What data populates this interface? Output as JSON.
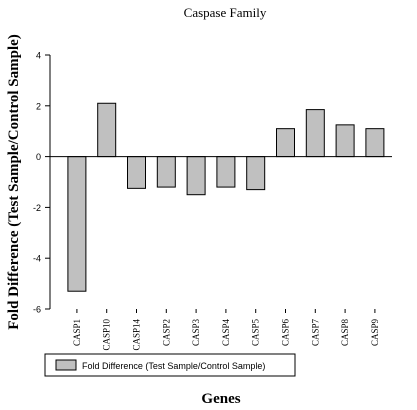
{
  "chart_data": {
    "type": "bar",
    "title": "Caspase Family",
    "xlabel": "Genes",
    "ylabel": "Fold Difference (Test Sample/Control Sample)",
    "categories": [
      "CASP1",
      "CASP10",
      "CASP14",
      "CASP2",
      "CASP3",
      "CASP4",
      "CASP5",
      "CASP6",
      "CASP7",
      "CASP8",
      "CASP9"
    ],
    "series": [
      {
        "name": "Fold Difference (Test Sample/Control Sample)",
        "values": [
          -5.3,
          2.1,
          -1.25,
          -1.2,
          -1.5,
          -1.2,
          -1.3,
          1.1,
          1.85,
          1.25,
          1.1
        ]
      }
    ],
    "ylim": [
      -6,
      4
    ],
    "yticks": [
      -6,
      -4,
      -2,
      0,
      2,
      4
    ],
    "grid": false,
    "legend_position": "bottom-left",
    "bar_color": "#c0c0c0",
    "bar_edge_color": "#000000"
  }
}
